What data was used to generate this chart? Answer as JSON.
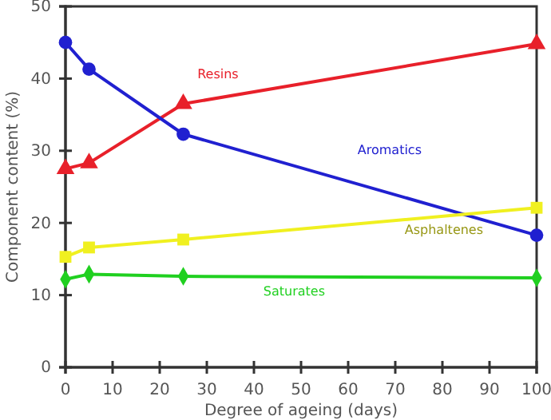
{
  "chart_data": {
    "type": "line",
    "xlabel": "Degree of ageing (days)",
    "ylabel": "Component content (%)",
    "x": [
      0,
      5,
      25,
      100
    ],
    "series": [
      {
        "name": "Resins",
        "color": "#e8202a",
        "marker": "triangle",
        "values": [
          27.5,
          28.3,
          36.5,
          44.8
        ]
      },
      {
        "name": "Aromatics",
        "color": "#2020d0",
        "marker": "circle",
        "values": [
          45,
          41.3,
          32.3,
          18.3
        ]
      },
      {
        "name": "Asphaltenes",
        "color": "#f0f020",
        "marker": "square",
        "values": [
          15.3,
          16.6,
          17.7,
          22.1
        ]
      },
      {
        "name": "Saturates",
        "color": "#20d020",
        "marker": "diamond",
        "values": [
          12.2,
          12.9,
          12.6,
          12.4
        ]
      }
    ],
    "xlim": [
      0,
      100
    ],
    "xticks": [
      0,
      10,
      20,
      30,
      40,
      50,
      60,
      70,
      80,
      90,
      100
    ],
    "ylim": [
      0,
      50
    ],
    "yticks": [
      0,
      10,
      20,
      30,
      40,
      50
    ],
    "grid": false,
    "legend": false
  }
}
